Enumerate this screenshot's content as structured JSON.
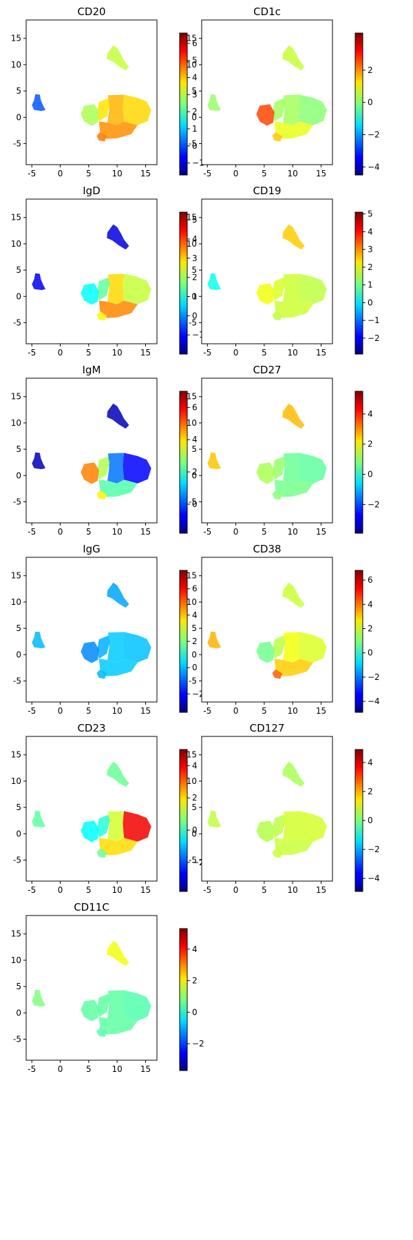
{
  "chart_data": [
    {
      "type": "scatter",
      "title": "CD20",
      "xlim": [
        -6,
        17
      ],
      "ylim": [
        -9,
        18.5
      ],
      "xticks": [
        -5,
        0,
        5,
        10,
        15
      ],
      "yticks": [
        -5,
        0,
        5,
        10,
        15
      ],
      "colorbar": {
        "min": -1.7,
        "max": 6.6,
        "ticks": [
          6,
          5,
          4,
          3,
          2,
          1,
          0,
          -1
        ]
      },
      "colormap": "jet",
      "clusters": {
        "small": 0.05,
        "top": 3.0,
        "left": 2.8,
        "mid": 3.7,
        "bottom": 4.6,
        "right": 3.8,
        "lower": 4.4,
        "center": 4.1
      }
    },
    {
      "type": "scatter",
      "title": "CD1c",
      "xlim": [
        -6,
        17
      ],
      "ylim": [
        -9,
        18.5
      ],
      "xticks": [
        -5,
        0,
        5,
        10,
        15
      ],
      "yticks": [
        -5,
        0,
        5,
        10,
        15
      ],
      "colorbar": {
        "min": -4.5,
        "max": 4.3,
        "ticks": [
          2,
          0,
          -2,
          -4
        ]
      },
      "colormap": "jet",
      "clusters": {
        "small": 0.1,
        "top": 0.5,
        "left": 2.6,
        "mid": 0.2,
        "bottom": 1.5,
        "right": 0.0,
        "lower": 0.8,
        "center": 0.2
      }
    },
    {
      "type": "scatter",
      "title": "IgD",
      "xlim": [
        -6,
        17
      ],
      "ylim": [
        -9,
        18.5
      ],
      "xticks": [
        -5,
        0,
        5,
        10,
        15
      ],
      "yticks": [
        -5,
        0,
        5,
        10,
        15
      ],
      "colorbar": {
        "min": -2.0,
        "max": 5.4,
        "ticks": [
          5,
          4,
          3,
          2,
          1,
          0,
          -1
        ]
      },
      "colormap": "jet",
      "clusters": {
        "small": -1.2,
        "top": -1.3,
        "left": 0.8,
        "mid": 1.5,
        "bottom": 2.7,
        "right": 2.2,
        "lower": 3.5,
        "center": 2.9
      }
    },
    {
      "type": "scatter",
      "title": "CD19",
      "xlim": [
        -6,
        17
      ],
      "ylim": [
        -9,
        18.5
      ],
      "xticks": [
        -5,
        0,
        5,
        10,
        15
      ],
      "yticks": [
        -5,
        0,
        5,
        10,
        15
      ],
      "colorbar": {
        "min": -2.9,
        "max": 5.1,
        "ticks": [
          5,
          4,
          3,
          2,
          1,
          0,
          -1,
          -2
        ]
      },
      "colormap": "jet",
      "clusters": {
        "small": 0.2,
        "top": 2.5,
        "left": 2.0,
        "mid": 1.8,
        "bottom": 1.6,
        "right": 1.6,
        "lower": 1.7,
        "center": 1.7
      }
    },
    {
      "type": "scatter",
      "title": "IgM",
      "xlim": [
        -6,
        17
      ],
      "ylim": [
        -9,
        18.5
      ],
      "xticks": [
        -5,
        0,
        5,
        10,
        15
      ],
      "yticks": [
        -5,
        0,
        5,
        10,
        15
      ],
      "colorbar": {
        "min": -1.8,
        "max": 7.0,
        "ticks": [
          6,
          4,
          2,
          0
        ]
      },
      "colormap": "jet",
      "clusters": {
        "small": -1.3,
        "top": -1.3,
        "left": 4.8,
        "mid": 3.0,
        "bottom": 3.8,
        "right": -0.7,
        "lower": 2.2,
        "center": 0.3
      }
    },
    {
      "type": "scatter",
      "title": "CD27",
      "xlim": [
        -6,
        17
      ],
      "ylim": [
        -9,
        18.5
      ],
      "xticks": [
        -5,
        0,
        5,
        10,
        15
      ],
      "yticks": [
        -5,
        0,
        5,
        10,
        15
      ],
      "colorbar": {
        "min": -3.9,
        "max": 5.5,
        "ticks": [
          4,
          2,
          0,
          -2
        ]
      },
      "colormap": "jet",
      "clusters": {
        "small": 2.5,
        "top": 2.6,
        "left": 1.2,
        "mid": 1.0,
        "bottom": 0.9,
        "right": 0.5,
        "lower": 0.7,
        "center": 0.6
      }
    },
    {
      "type": "scatter",
      "title": "IgG",
      "xlim": [
        -6,
        17
      ],
      "ylim": [
        -9,
        18.5
      ],
      "xticks": [
        -5,
        0,
        5,
        10,
        15
      ],
      "yticks": [
        -5,
        0,
        5,
        10,
        15
      ],
      "colorbar": {
        "min": -3.4,
        "max": 7.4,
        "ticks": [
          6,
          4,
          2,
          0,
          -2
        ]
      },
      "colormap": "jet",
      "clusters": {
        "small": -0.1,
        "top": -0.3,
        "left": -0.6,
        "mid": -0.2,
        "bottom": -0.1,
        "right": 0.0,
        "lower": 0.1,
        "center": 0.1
      }
    },
    {
      "type": "scatter",
      "title": "CD38",
      "xlim": [
        -6,
        17
      ],
      "ylim": [
        -9,
        18.5
      ],
      "xticks": [
        -5,
        0,
        5,
        10,
        15
      ],
      "yticks": [
        -5,
        0,
        5,
        10,
        15
      ],
      "colorbar": {
        "min": -4.9,
        "max": 6.8,
        "ticks": [
          6,
          4,
          2,
          0,
          -2,
          -4
        ]
      },
      "colormap": "jet",
      "clusters": {
        "small": 3.3,
        "top": 1.8,
        "left": 0.8,
        "mid": 1.6,
        "bottom": 4.3,
        "right": 2.0,
        "lower": 3.0,
        "center": 2.3
      }
    },
    {
      "type": "scatter",
      "title": "CD23",
      "xlim": [
        -6,
        17
      ],
      "ylim": [
        -9,
        18.5
      ],
      "xticks": [
        -5,
        0,
        5,
        10,
        15
      ],
      "yticks": [
        -5,
        0,
        5,
        10,
        15
      ],
      "colorbar": {
        "min": -3.8,
        "max": 5.0,
        "ticks": [
          4,
          2,
          0,
          -2
        ]
      },
      "colormap": "jet",
      "clusters": {
        "small": 0.3,
        "top": 0.4,
        "left": -0.5,
        "mid": -0.2,
        "bottom": 0.4,
        "right": 4.0,
        "lower": 2.0,
        "center": 1.3
      }
    },
    {
      "type": "scatter",
      "title": "CD127",
      "xlim": [
        -6,
        17
      ],
      "ylim": [
        -9,
        18.5
      ],
      "xticks": [
        -5,
        0,
        5,
        10,
        15
      ],
      "yticks": [
        -5,
        0,
        5,
        10,
        15
      ],
      "colorbar": {
        "min": -4.9,
        "max": 4.9,
        "ticks": [
          4,
          2,
          0,
          -2,
          -4
        ]
      },
      "colormap": "jet",
      "clusters": {
        "small": 0.6,
        "top": 0.4,
        "left": 0.5,
        "mid": 0.6,
        "bottom": 0.7,
        "right": 0.8,
        "lower": 0.7,
        "center": 0.8
      }
    },
    {
      "type": "scatter",
      "title": "CD11C",
      "xlim": [
        -6,
        17
      ],
      "ylim": [
        -9,
        18.5
      ],
      "xticks": [
        -5,
        0,
        5,
        10,
        15
      ],
      "yticks": [
        -5,
        0,
        5,
        10,
        15
      ],
      "colorbar": {
        "min": -3.7,
        "max": 5.3,
        "ticks": [
          4,
          2,
          0,
          -2
        ]
      },
      "colormap": "jet",
      "clusters": {
        "small": 0.8,
        "top": 1.8,
        "left": 0.5,
        "mid": 0.5,
        "bottom": 0.4,
        "right": 0.4,
        "lower": 0.5,
        "center": 0.5
      }
    }
  ]
}
